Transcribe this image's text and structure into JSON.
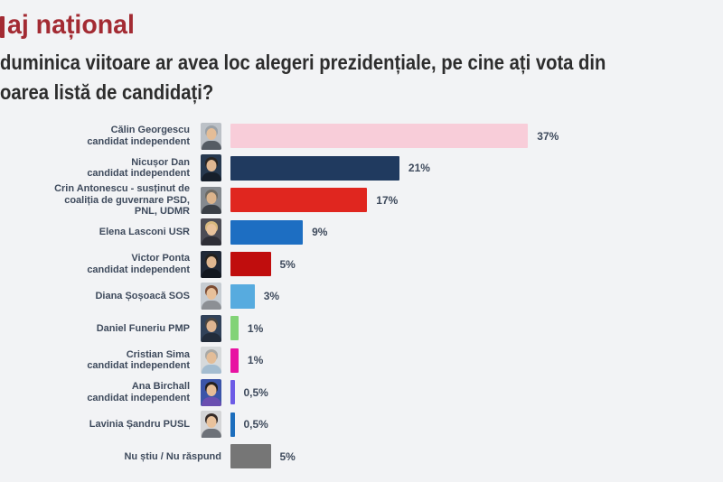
{
  "header": {
    "title_visible": "aj național",
    "title_color": "#a32b33",
    "question_line1": "duminica viitoare ar avea loc alegeri prezidențiale, pe cine ați vota din",
    "question_line2": "oarea listă de candidați?"
  },
  "chart_data": {
    "type": "bar",
    "orientation": "horizontal",
    "title": "",
    "xlabel": "",
    "ylabel": "",
    "xlim": [
      0,
      40
    ],
    "grid": false,
    "legend": false,
    "value_suffix": "%",
    "categories": [
      "Călin Georgescu candidat independent",
      "Nicușor Dan candidat independent",
      "Crin Antonescu - susținut de coaliția de guvernare PSD, PNL, UDMR",
      "Elena Lasconi USR",
      "Victor Ponta candidat independent",
      "Diana Șoșoacă SOS",
      "Daniel Funeriu PMP",
      "Cristian Sima candidat independent",
      "Ana Birchall candidat independent",
      "Lavinia Șandru PUSL",
      "Nu știu / Nu răspund"
    ],
    "values": [
      37,
      21,
      17,
      9,
      5,
      3,
      1,
      1,
      0.5,
      0.5,
      5
    ],
    "rows": [
      {
        "label_lines": [
          "Călin Georgescu",
          "candidat independent"
        ],
        "value": 37,
        "value_label": "37%",
        "bar_color": "#f8cdd9",
        "photo": {
          "bg": "#bcc1c7",
          "hair": "#9ba1a7",
          "skin": "#e4bd97",
          "suit": "#555c64"
        }
      },
      {
        "label_lines": [
          "Nicușor Dan",
          "candidat independent"
        ],
        "value": 21,
        "value_label": "21%",
        "bar_color": "#203a5f",
        "photo": {
          "bg": "#27394f",
          "hair": "#2a2623",
          "skin": "#e0b892",
          "suit": "#161f2b"
        }
      },
      {
        "label_lines": [
          "Crin Antonescu - susținut de",
          "coaliția de guvernare PSD,",
          "PNL, UDMR"
        ],
        "value": 17,
        "value_label": "17%",
        "bar_color": "#e0261f",
        "photo": {
          "bg": "#84898f",
          "hair": "#6e6a63",
          "skin": "#dcb48c",
          "suit": "#3a3f46"
        }
      },
      {
        "label_lines": [
          "Elena Lasconi USR"
        ],
        "value": 9,
        "value_label": "9%",
        "bar_color": "#1d6ec2",
        "photo": {
          "bg": "#4c4c55",
          "hair": "#d7b87e",
          "skin": "#e8c29c",
          "suit": "#2e2e36"
        }
      },
      {
        "label_lines": [
          "Victor Ponta",
          "candidat independent"
        ],
        "value": 5,
        "value_label": "5%",
        "bar_color": "#c00d0d",
        "photo": {
          "bg": "#202836",
          "hair": "#23201d",
          "skin": "#deb690",
          "suit": "#12171f"
        }
      },
      {
        "label_lines": [
          "Diana Șoșoacă SOS"
        ],
        "value": 3,
        "value_label": "3%",
        "bar_color": "#57abdf",
        "photo": {
          "bg": "#c6ccd2",
          "hair": "#7c4c33",
          "skin": "#e8c09a",
          "suit": "#8c8f94"
        }
      },
      {
        "label_lines": [
          "Daniel Funeriu PMP"
        ],
        "value": 1,
        "value_label": "1%",
        "bar_color": "#82d377",
        "photo": {
          "bg": "#31425a",
          "hair": "#4a4540",
          "skin": "#dfb591",
          "suit": "#222c3b"
        }
      },
      {
        "label_lines": [
          "Cristian Sima",
          "candidat independent"
        ],
        "value": 1,
        "value_label": "1%",
        "bar_color": "#e812a2",
        "photo": {
          "bg": "#d6d9db",
          "hair": "#a9a9a6",
          "skin": "#e3bd98",
          "suit": "#a3bcd0"
        }
      },
      {
        "label_lines": [
          "Ana Birchall",
          "candidat independent"
        ],
        "value": 0.5,
        "value_label": "0,5%",
        "bar_color": "#6d5ce6",
        "photo": {
          "bg": "#3c55a8",
          "hair": "#241f1e",
          "skin": "#e6bd97",
          "suit": "#6a4fb0"
        }
      },
      {
        "label_lines": [
          "Lavinia Șandru PUSL"
        ],
        "value": 0.5,
        "value_label": "0,5%",
        "bar_color": "#1d6ebd",
        "photo": {
          "bg": "#d4d5d7",
          "hair": "#352b27",
          "skin": "#e9c29c",
          "suit": "#6d7178"
        }
      },
      {
        "label_lines": [
          "Nu știu / Nu răspund"
        ],
        "value": 5,
        "value_label": "5%",
        "bar_color": "#767676",
        "photo": null
      }
    ]
  }
}
